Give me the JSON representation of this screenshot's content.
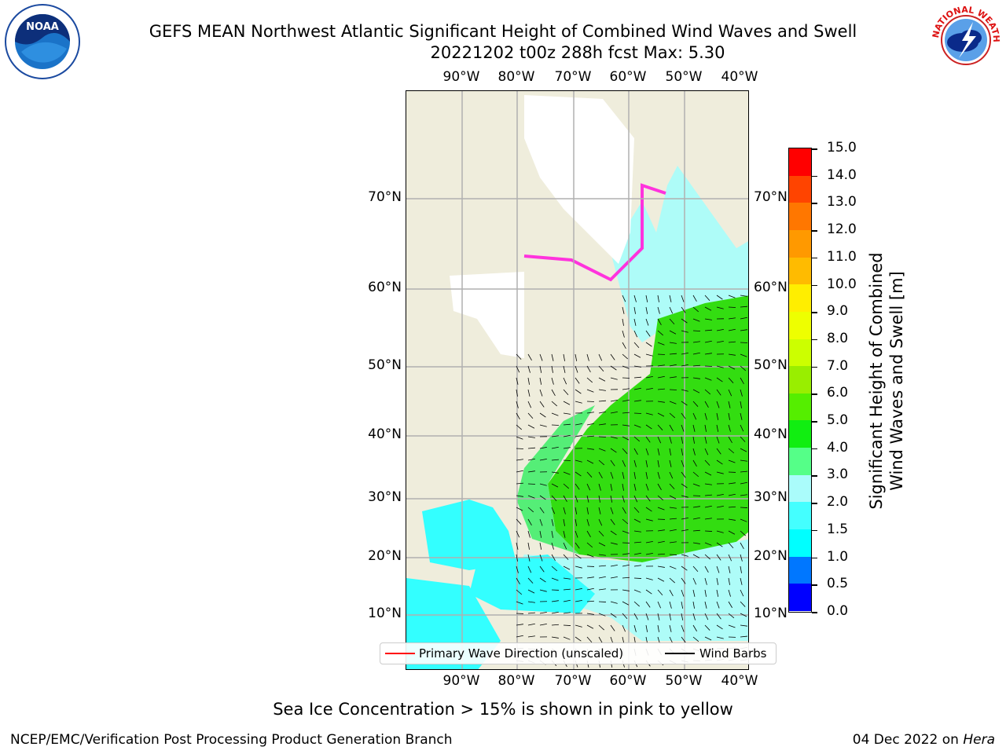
{
  "header": {
    "title_line1": "GEFS MEAN Northwest Atlantic Significant Height of Combined Wind Waves and Swell",
    "title_line2": "20221202 t00z 288h fcst   Max: 5.30"
  },
  "logos": {
    "left": {
      "name": "noaa-logo",
      "text": "NOAA"
    },
    "right": {
      "name": "nws-logo",
      "text": "NATIONAL WEATHER SERVICE"
    }
  },
  "map": {
    "lon_labels": [
      "90°W",
      "80°W",
      "70°W",
      "60°W",
      "50°W",
      "40°W"
    ],
    "lat_labels": [
      "70°N",
      "60°N",
      "50°N",
      "40°N",
      "30°N",
      "20°N",
      "10°N"
    ],
    "colors": {
      "land": "#efeddc",
      "ocean_low": "#aefcf8",
      "ocean_cyan": "#33ffff",
      "ocean_green_light": "#55ee77",
      "ocean_green": "#33dd11",
      "ice_pink": "#ff33dd",
      "ice_white": "#ffffff",
      "grid": "#b0b0b0",
      "wave_dir": "#ff0000",
      "barb": "#000000"
    }
  },
  "colorbar": {
    "title_line1": "Significant Height of Combined",
    "title_line2": "Wind Waves and Swell [m]",
    "ticks": [
      "0.0",
      "0.5",
      "1.0",
      "1.5",
      "2.0",
      "3.0",
      "4.0",
      "5.0",
      "6.0",
      "7.0",
      "8.0",
      "9.0",
      "10.0",
      "11.0",
      "12.0",
      "13.0",
      "14.0",
      "15.0"
    ],
    "colors": [
      "#0000ff",
      "#0077ff",
      "#00ffff",
      "#44ffff",
      "#aafcfb",
      "#55ff88",
      "#11ee11",
      "#55ee00",
      "#99ee00",
      "#ccff00",
      "#eeff00",
      "#ffee00",
      "#ffbb00",
      "#ff9900",
      "#ff7700",
      "#ff4400",
      "#ff0000"
    ]
  },
  "legend": {
    "wave_label": "Primary Wave Direction (unscaled)",
    "barb_label": "Wind Barbs"
  },
  "note": "Sea Ice Concentration > 15% is shown in pink to yellow",
  "footer": {
    "left": "NCEP/EMC/Verification Post Processing Product Generation Branch",
    "right_date": "04 Dec 2022 on ",
    "right_host": "Hera"
  }
}
